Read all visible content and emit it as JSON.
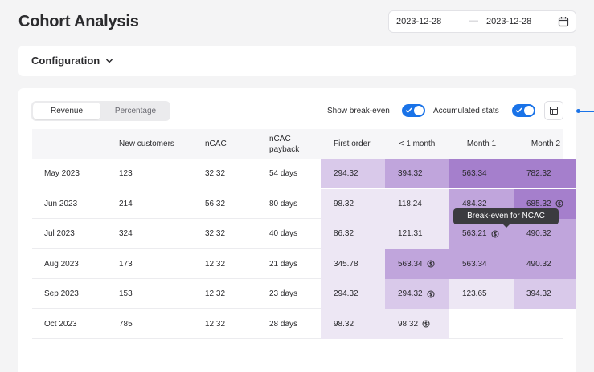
{
  "page": {
    "title": "Cohort Analysis"
  },
  "date_range": {
    "start": "2023-12-28",
    "separator": "—",
    "end": "2023-12-28",
    "icon": "calendar-icon"
  },
  "configuration": {
    "label": "Configuration",
    "icon": "chevron-down-icon"
  },
  "view_toggle": {
    "options": [
      "Revenue",
      "Percentage"
    ],
    "selected": "Revenue"
  },
  "controls": {
    "show_break_even": {
      "label": "Show break-even",
      "on": true
    },
    "accumulated_stats": {
      "label": "Accumulated stats",
      "on": true
    },
    "table_icon": "table-layout-icon"
  },
  "colors": {
    "accent": "#1a73e8",
    "heat_light": "#ede7f4",
    "heat_mid": "#d9c9ea",
    "heat_strong": "#c0a5dc",
    "heat_max": "#a57fcc"
  },
  "table": {
    "headers": [
      "",
      "New customers",
      "nCAC",
      "nCAC payback",
      "First order",
      "< 1 month",
      "Month 1",
      "Month 2"
    ],
    "rows": [
      {
        "cohort": "May 2023",
        "new_customers": "123",
        "ncac": "32.32",
        "payback": "54 days",
        "cells": [
          {
            "v": "294.32",
            "lvl": "mid",
            "be": false
          },
          {
            "v": "394.32",
            "lvl": "strong",
            "be": false
          },
          {
            "v": "563.34",
            "lvl": "max",
            "be": false
          },
          {
            "v": "782.32",
            "lvl": "max",
            "be": false
          }
        ]
      },
      {
        "cohort": "Jun 2023",
        "new_customers": "214",
        "ncac": "56.32",
        "payback": "80 days",
        "cells": [
          {
            "v": "98.32",
            "lvl": "light",
            "be": false
          },
          {
            "v": "118.24",
            "lvl": "light",
            "be": false
          },
          {
            "v": "484.32",
            "lvl": "strong",
            "be": false
          },
          {
            "v": "685.32",
            "lvl": "max",
            "be": true
          }
        ]
      },
      {
        "cohort": "Jul 2023",
        "new_customers": "324",
        "ncac": "32.32",
        "payback": "40 days",
        "cells": [
          {
            "v": "86.32",
            "lvl": "light",
            "be": false
          },
          {
            "v": "121.31",
            "lvl": "light",
            "be": false
          },
          {
            "v": "563.21",
            "lvl": "strong",
            "be": true
          },
          {
            "v": "490.32",
            "lvl": "strong",
            "be": false
          }
        ]
      },
      {
        "cohort": "Aug 2023",
        "new_customers": "173",
        "ncac": "12.32",
        "payback": "21 days",
        "cells": [
          {
            "v": "345.78",
            "lvl": "light",
            "be": false
          },
          {
            "v": "563.34",
            "lvl": "strong",
            "be": true
          },
          {
            "v": "563.34",
            "lvl": "strong",
            "be": false
          },
          {
            "v": "490.32",
            "lvl": "strong",
            "be": false
          }
        ]
      },
      {
        "cohort": "Sep 2023",
        "new_customers": "153",
        "ncac": "12.32",
        "payback": "23 days",
        "cells": [
          {
            "v": "294.32",
            "lvl": "light",
            "be": false
          },
          {
            "v": "294.32",
            "lvl": "mid",
            "be": true
          },
          {
            "v": "123.65",
            "lvl": "light",
            "be": false
          },
          {
            "v": "394.32",
            "lvl": "mid",
            "be": false
          }
        ]
      },
      {
        "cohort": "Oct 2023",
        "new_customers": "785",
        "ncac": "12.32",
        "payback": "28 days",
        "cells": [
          {
            "v": "98.32",
            "lvl": "light",
            "be": false
          },
          {
            "v": "98.32",
            "lvl": "light",
            "be": true
          }
        ]
      }
    ]
  },
  "tooltip": {
    "text": "Break-even for NCAC"
  }
}
